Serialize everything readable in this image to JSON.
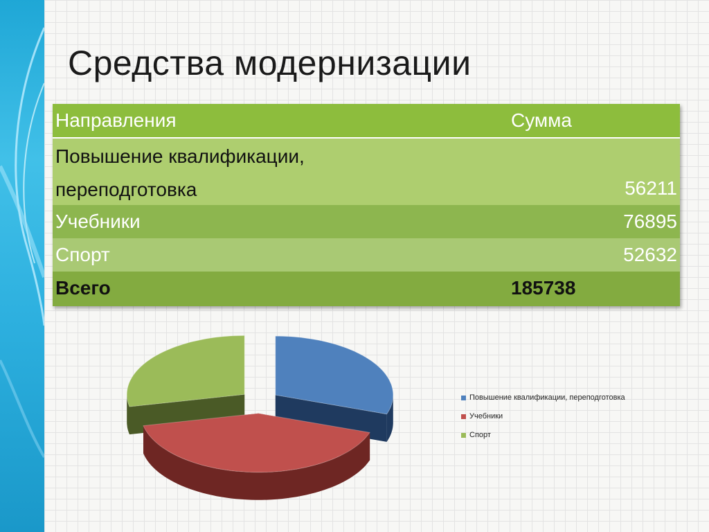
{
  "slide": {
    "title": "Средства модернизации"
  },
  "table": {
    "headers": {
      "direction": "Направления",
      "sum": "Сумма"
    },
    "rows": [
      {
        "name": "Повышение квалификации, переподготовка",
        "value": "56211"
      },
      {
        "name": "Учебники",
        "value": "76895"
      },
      {
        "name": "Спорт",
        "value": "52632"
      }
    ],
    "total": {
      "name": "Всего",
      "value": "185738"
    }
  },
  "chart_data": {
    "type": "pie",
    "title": "",
    "categories": [
      "Повышение квалификации, переподготовка",
      "Учебники",
      "Спорт"
    ],
    "values": [
      56211,
      76895,
      52632
    ],
    "legend_position": "right",
    "colors": [
      "#4f81bd",
      "#c0504d",
      "#9bbb59"
    ],
    "side_colors": [
      "#1f3a5f",
      "#6e2623",
      "#4a5a26"
    ],
    "exploded": true,
    "three_d": true
  }
}
